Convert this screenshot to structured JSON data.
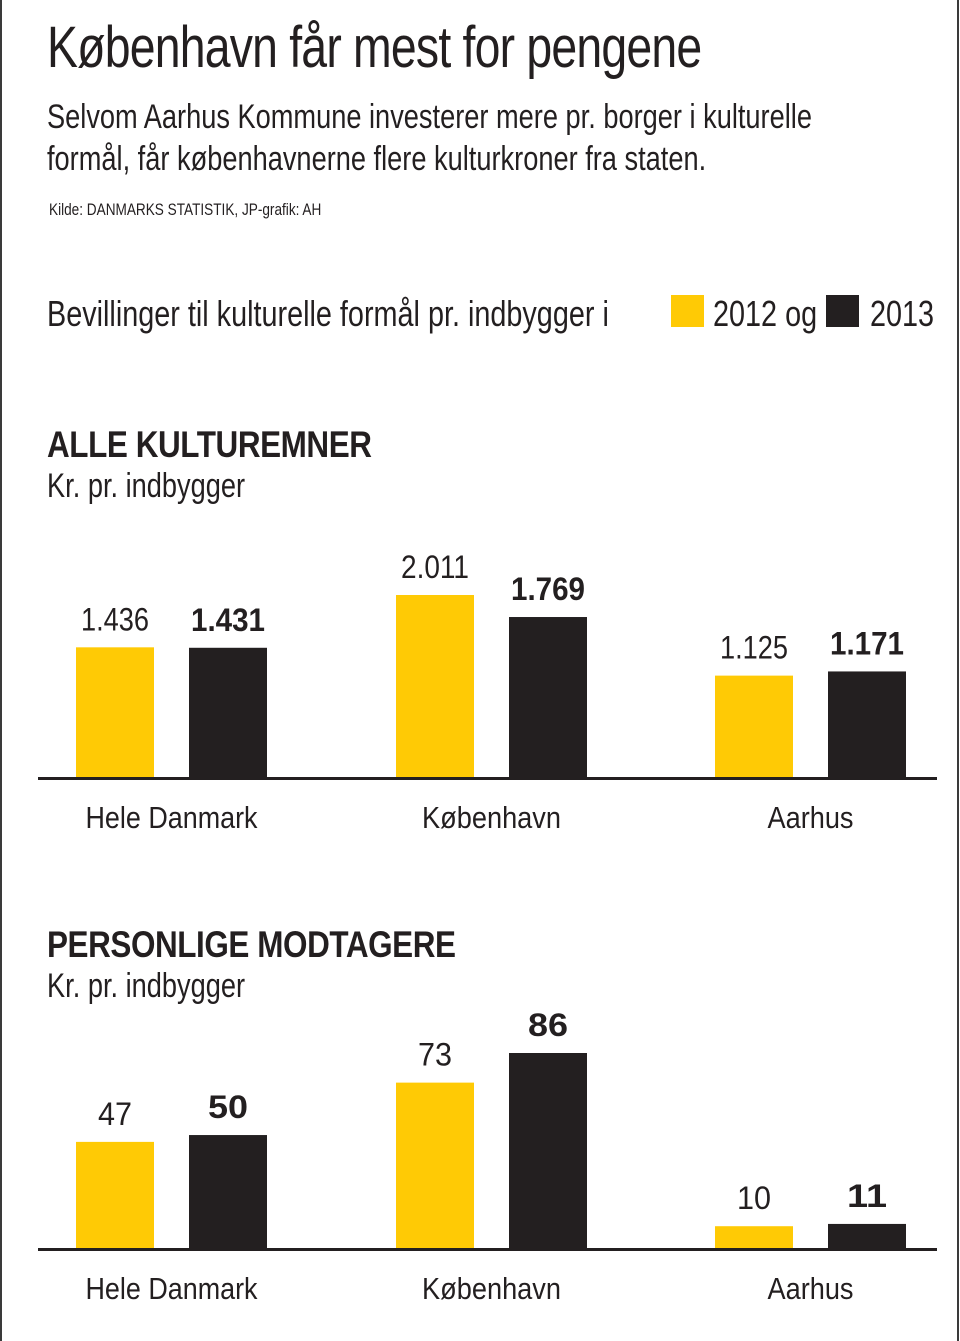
{
  "header": {
    "title": "København får mest for pengene",
    "subtitle_line1": "Selvom Aarhus Kommune investerer mere pr. borger i kulturelle",
    "subtitle_line2": "formål, får københavnerne flere kulturkroner fra staten.",
    "source": "Kilde: DANMARKS STATISTIK, JP-grafik: AH"
  },
  "legend": {
    "text": "Bevillinger til kulturelle formål pr. indbygger i",
    "y2012": "2012 og",
    "y2013": "2013",
    "colors": {
      "y2012": "#FFCA05",
      "y2013": "#231F20"
    }
  },
  "chart_data": [
    {
      "type": "bar",
      "title": "ALLE KULTUREMNER",
      "ylabel": "Kr. pr. indbygger",
      "xlabel": "",
      "categories": [
        "Hele Danmark",
        "København",
        "Aarhus"
      ],
      "series": [
        {
          "name": "2012",
          "values": [
            1436,
            2011,
            1125
          ],
          "labels": [
            "1.436",
            "2.011",
            "1.125"
          ],
          "color": "#FFCA05",
          "bold": false
        },
        {
          "name": "2013",
          "values": [
            1431,
            1769,
            1171
          ],
          "labels": [
            "1.431",
            "1.769",
            "1.171"
          ],
          "color": "#231F20",
          "bold": true
        }
      ],
      "ylim": [
        0,
        2011
      ],
      "grid": false,
      "legend": "top"
    },
    {
      "type": "bar",
      "title": "PERSONLIGE MODTAGERE",
      "ylabel": "Kr. pr. indbygger",
      "xlabel": "",
      "categories": [
        "Hele Danmark",
        "København",
        "Aarhus"
      ],
      "series": [
        {
          "name": "2012",
          "values": [
            47,
            73,
            10
          ],
          "labels": [
            "47",
            "73",
            "10"
          ],
          "color": "#FFCA05",
          "bold": false
        },
        {
          "name": "2013",
          "values": [
            50,
            86,
            11
          ],
          "labels": [
            "50",
            "86",
            "11"
          ],
          "color": "#231F20",
          "bold": true
        }
      ],
      "ylim": [
        0,
        86
      ],
      "grid": false,
      "legend": "top"
    }
  ]
}
